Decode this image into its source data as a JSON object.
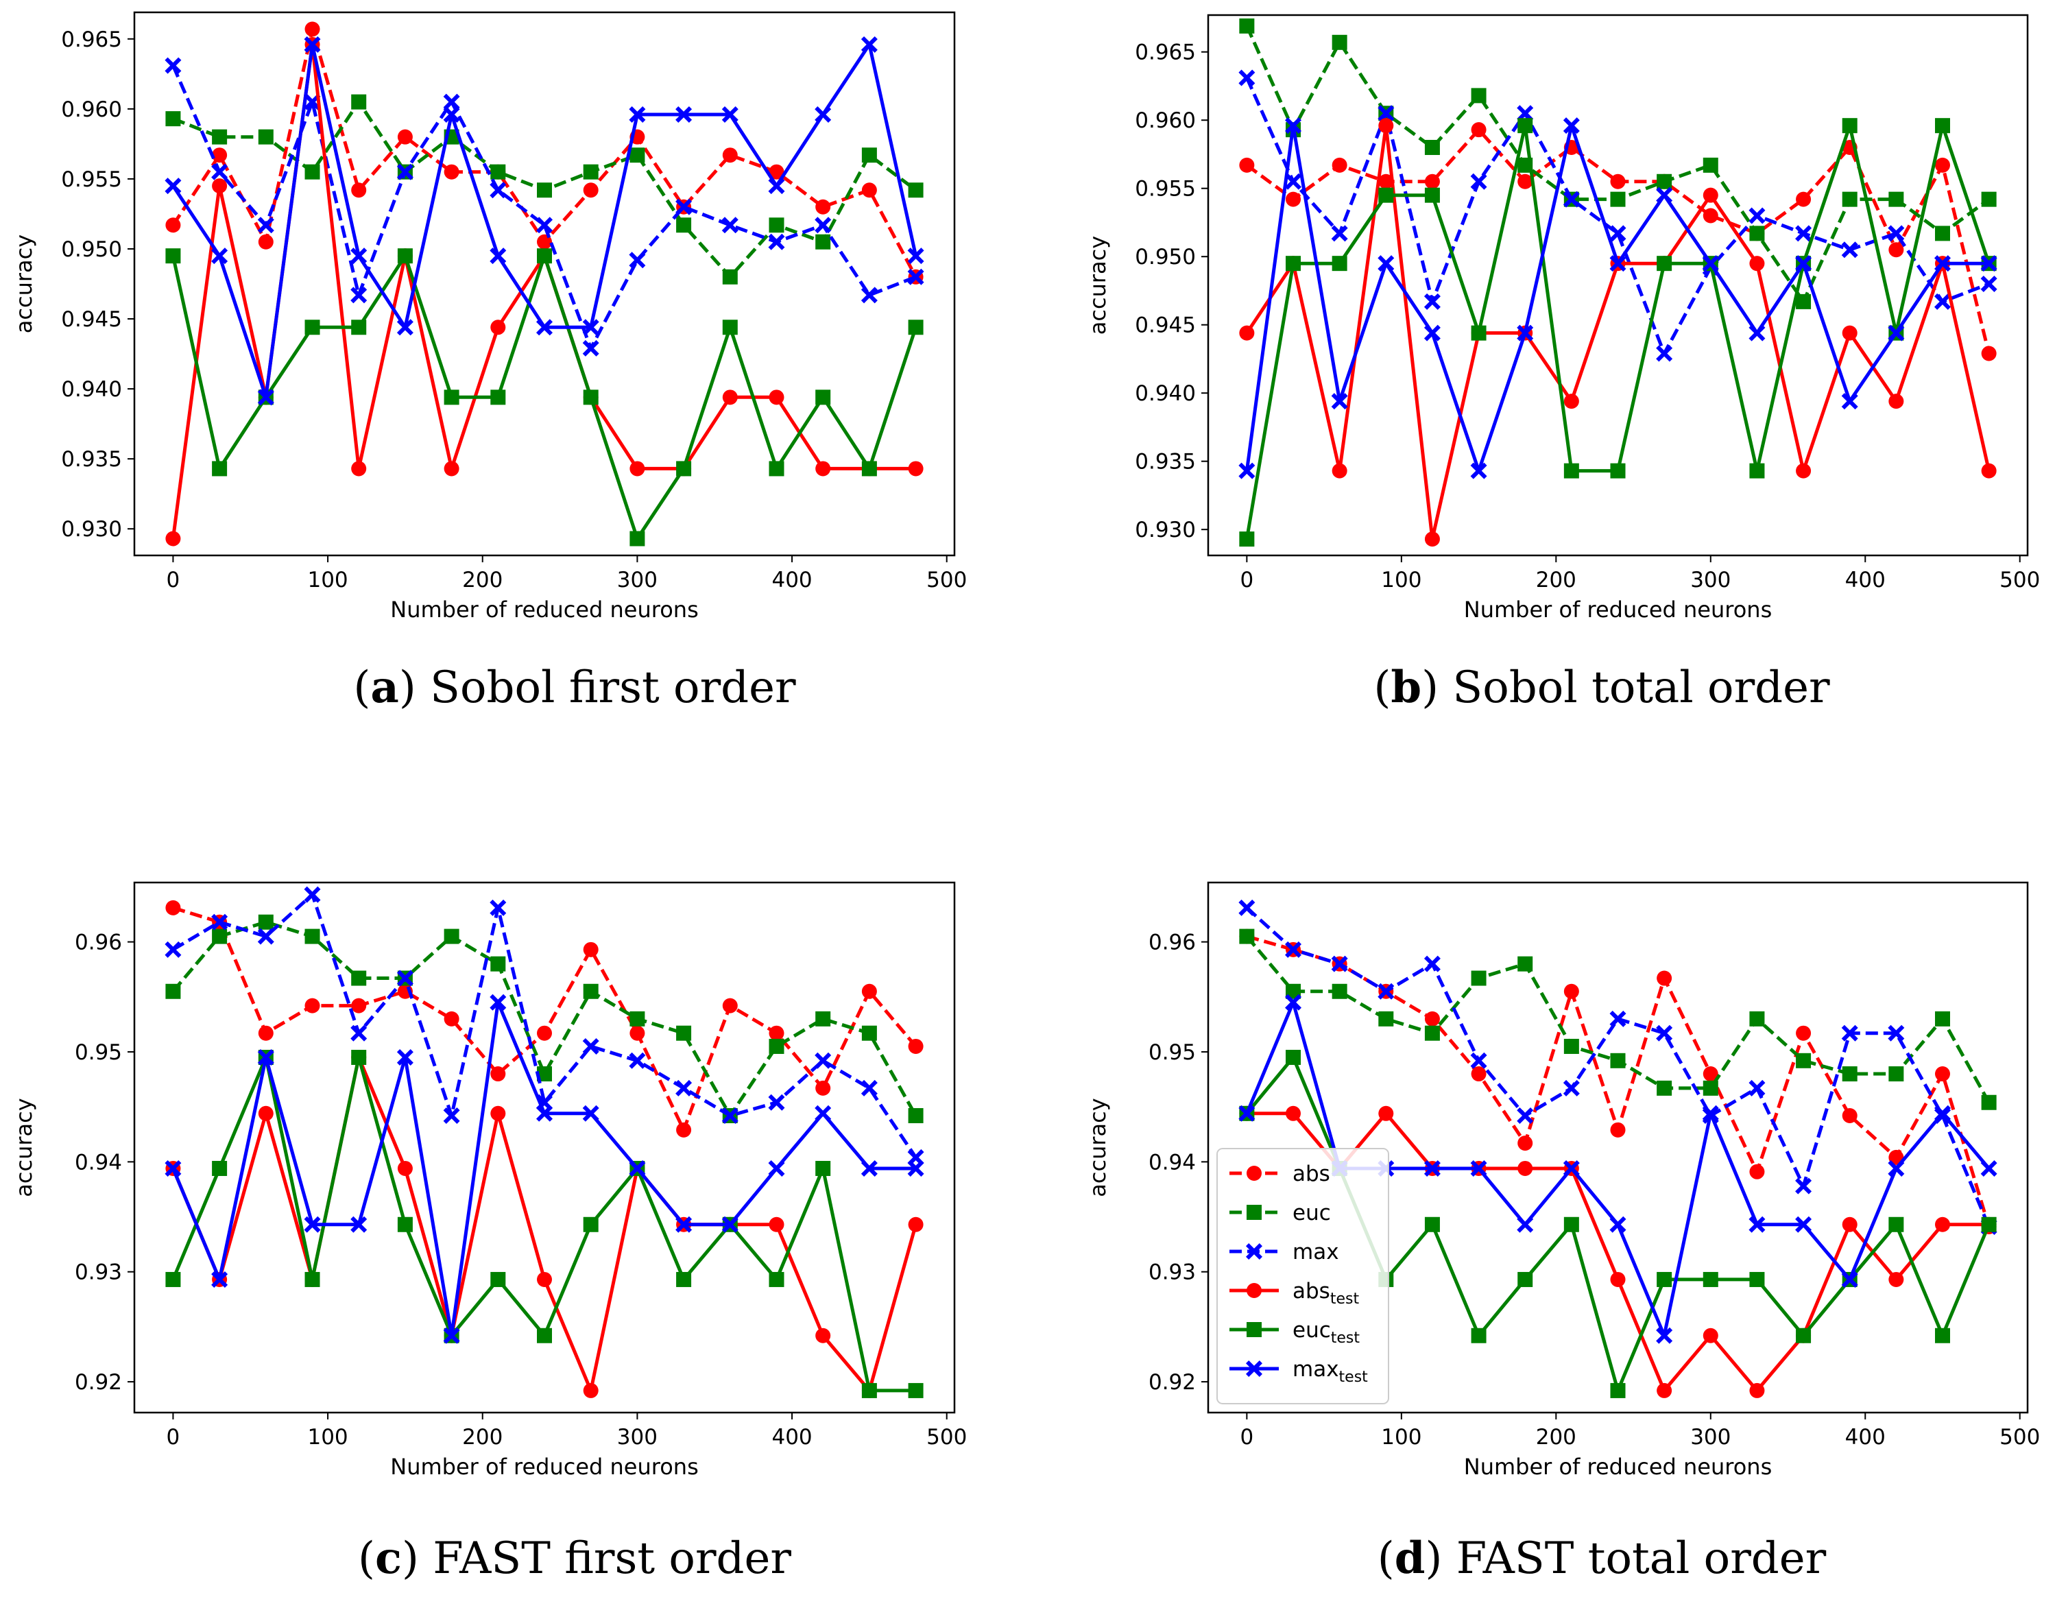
{
  "colors": {
    "abs": "#ff0000",
    "euc": "#008000",
    "max": "#0000ff"
  },
  "legend": {
    "entries": [
      {
        "key": "abs",
        "label": "abs",
        "sub": "",
        "style": "dashed",
        "marker": "circle"
      },
      {
        "key": "euc",
        "label": "euc",
        "sub": "",
        "style": "dashed",
        "marker": "square"
      },
      {
        "key": "max",
        "label": "max",
        "sub": "",
        "style": "dashed",
        "marker": "x"
      },
      {
        "key": "abs",
        "label": "abs",
        "sub": "test",
        "style": "solid",
        "marker": "circle"
      },
      {
        "key": "euc",
        "label": "euc",
        "sub": "test",
        "style": "solid",
        "marker": "square"
      },
      {
        "key": "max",
        "label": "max",
        "sub": "test",
        "style": "solid",
        "marker": "x"
      }
    ]
  },
  "chart_data": [
    {
      "type": "line",
      "panel": "a",
      "caption_letter": "a",
      "caption_text": "Sobol first order",
      "xlabel": "Number of reduced neurons",
      "ylabel": "accuracy",
      "xlim": [
        -25,
        505
      ],
      "ylim": [
        0.9281,
        0.9669
      ],
      "xticks": [
        0,
        100,
        200,
        300,
        400,
        500
      ],
      "yticks": [
        0.93,
        0.935,
        0.94,
        0.945,
        0.95,
        0.955,
        0.96,
        0.965
      ],
      "ytick_labels": [
        "0.930",
        "0.935",
        "0.940",
        "0.945",
        "0.950",
        "0.955",
        "0.960",
        "0.965"
      ],
      "x": [
        0,
        30,
        60,
        90,
        120,
        150,
        180,
        210,
        240,
        270,
        300,
        330,
        360,
        390,
        420,
        450,
        480
      ],
      "series": [
        {
          "name": "abs",
          "key": "abs",
          "style": "dashed",
          "marker": "circle",
          "values": [
            0.9517,
            0.9567,
            0.9505,
            0.9657,
            0.9542,
            0.958,
            0.9555,
            0.9555,
            0.9505,
            0.9542,
            0.958,
            0.953,
            0.9567,
            0.9555,
            0.953,
            0.9542,
            0.948
          ]
        },
        {
          "name": "euc",
          "key": "euc",
          "style": "dashed",
          "marker": "square",
          "values": [
            0.9593,
            0.958,
            0.958,
            0.9555,
            0.9605,
            0.9555,
            0.958,
            0.9555,
            0.9542,
            0.9555,
            0.9567,
            0.9517,
            0.948,
            0.9517,
            0.9505,
            0.9567,
            0.9542
          ]
        },
        {
          "name": "max",
          "key": "max",
          "style": "dashed",
          "marker": "x",
          "values": [
            0.9631,
            0.9555,
            0.9517,
            0.9605,
            0.9467,
            0.9555,
            0.9605,
            0.9542,
            0.9517,
            0.9429,
            0.9492,
            0.953,
            0.9517,
            0.9505,
            0.9517,
            0.9467,
            0.948
          ]
        },
        {
          "name": "abs_test",
          "key": "abs",
          "style": "solid",
          "marker": "circle",
          "values": [
            0.9293,
            0.9545,
            0.9394,
            0.9646,
            0.9343,
            0.9495,
            0.9343,
            0.9444,
            0.9495,
            0.9394,
            0.9343,
            0.9343,
            0.9394,
            0.9394,
            0.9343,
            0.9343,
            0.9343
          ]
        },
        {
          "name": "euc_test",
          "key": "euc",
          "style": "solid",
          "marker": "square",
          "values": [
            0.9495,
            0.9343,
            0.9394,
            0.9444,
            0.9444,
            0.9495,
            0.9394,
            0.9394,
            0.9495,
            0.9394,
            0.9293,
            0.9343,
            0.9444,
            0.9343,
            0.9394,
            0.9343,
            0.9444
          ]
        },
        {
          "name": "max_test",
          "key": "max",
          "style": "solid",
          "marker": "x",
          "values": [
            0.9545,
            0.9495,
            0.9394,
            0.9646,
            0.9495,
            0.9444,
            0.9596,
            0.9495,
            0.9444,
            0.9444,
            0.9596,
            0.9596,
            0.9596,
            0.9545,
            0.9596,
            0.9646,
            0.9495
          ]
        }
      ]
    },
    {
      "type": "line",
      "panel": "b",
      "caption_letter": "b",
      "caption_text": "Sobol total order",
      "xlabel": "Number of reduced neurons",
      "ylabel": "accuracy",
      "xlim": [
        -25,
        505
      ],
      "ylim": [
        0.9281,
        0.9677
      ],
      "xticks": [
        0,
        100,
        200,
        300,
        400,
        500
      ],
      "yticks": [
        0.93,
        0.935,
        0.94,
        0.945,
        0.95,
        0.955,
        0.96,
        0.965
      ],
      "ytick_labels": [
        "0.930",
        "0.935",
        "0.940",
        "0.945",
        "0.950",
        "0.955",
        "0.960",
        "0.965"
      ],
      "x": [
        0,
        30,
        60,
        90,
        120,
        150,
        180,
        210,
        240,
        270,
        300,
        330,
        360,
        390,
        420,
        450,
        480
      ],
      "series": [
        {
          "name": "abs",
          "key": "abs",
          "style": "dashed",
          "marker": "circle",
          "values": [
            0.9567,
            0.9542,
            0.9567,
            0.9555,
            0.9555,
            0.9593,
            0.9555,
            0.958,
            0.9555,
            0.9555,
            0.953,
            0.9517,
            0.9542,
            0.958,
            0.9505,
            0.9567,
            0.9429
          ]
        },
        {
          "name": "euc",
          "key": "euc",
          "style": "dashed",
          "marker": "square",
          "values": [
            0.9669,
            0.9593,
            0.9657,
            0.9605,
            0.958,
            0.9618,
            0.9567,
            0.9542,
            0.9542,
            0.9555,
            0.9567,
            0.9517,
            0.9467,
            0.9542,
            0.9542,
            0.9517,
            0.9542
          ]
        },
        {
          "name": "max",
          "key": "max",
          "style": "dashed",
          "marker": "x",
          "values": [
            0.9631,
            0.9555,
            0.9517,
            0.9605,
            0.9467,
            0.9555,
            0.9605,
            0.9542,
            0.9517,
            0.9429,
            0.9492,
            0.953,
            0.9517,
            0.9505,
            0.9517,
            0.9467,
            0.948
          ]
        },
        {
          "name": "abs_test",
          "key": "abs",
          "style": "solid",
          "marker": "circle",
          "values": [
            0.9444,
            0.9495,
            0.9343,
            0.9596,
            0.9293,
            0.9444,
            0.9444,
            0.9394,
            0.9495,
            0.9495,
            0.9545,
            0.9495,
            0.9343,
            0.9444,
            0.9394,
            0.9495,
            0.9343
          ]
        },
        {
          "name": "euc_test",
          "key": "euc",
          "style": "solid",
          "marker": "square",
          "values": [
            0.9293,
            0.9495,
            0.9495,
            0.9545,
            0.9545,
            0.9444,
            0.9596,
            0.9343,
            0.9343,
            0.9495,
            0.9495,
            0.9343,
            0.9495,
            0.9596,
            0.9444,
            0.9596,
            0.9495
          ]
        },
        {
          "name": "max_test",
          "key": "max",
          "style": "solid",
          "marker": "x",
          "values": [
            0.9343,
            0.9596,
            0.9394,
            0.9495,
            0.9444,
            0.9343,
            0.9444,
            0.9596,
            0.9495,
            0.9545,
            0.9495,
            0.9444,
            0.9495,
            0.9394,
            0.9444,
            0.9495,
            0.9495
          ]
        }
      ]
    },
    {
      "type": "line",
      "panel": "c",
      "caption_letter": "c",
      "caption_text": "FAST first order",
      "xlabel": "Number of reduced neurons",
      "ylabel": "accuracy",
      "xlim": [
        -25,
        505
      ],
      "ylim": [
        0.9172,
        0.9654
      ],
      "xticks": [
        0,
        100,
        200,
        300,
        400,
        500
      ],
      "yticks": [
        0.92,
        0.93,
        0.94,
        0.95,
        0.96
      ],
      "ytick_labels": [
        "0.92",
        "0.93",
        "0.94",
        "0.95",
        "0.96"
      ],
      "x": [
        0,
        30,
        60,
        90,
        120,
        150,
        180,
        210,
        240,
        270,
        300,
        330,
        360,
        390,
        420,
        450,
        480
      ],
      "series": [
        {
          "name": "abs",
          "key": "abs",
          "style": "dashed",
          "marker": "circle",
          "values": [
            0.9631,
            0.9618,
            0.9517,
            0.9542,
            0.9542,
            0.9555,
            0.953,
            0.948,
            0.9517,
            0.9593,
            0.9517,
            0.9429,
            0.9542,
            0.9517,
            0.9467,
            0.9555,
            0.9505
          ]
        },
        {
          "name": "euc",
          "key": "euc",
          "style": "dashed",
          "marker": "square",
          "values": [
            0.9555,
            0.9605,
            0.9618,
            0.9605,
            0.9567,
            0.9567,
            0.9605,
            0.958,
            0.948,
            0.9555,
            0.953,
            0.9517,
            0.9442,
            0.9505,
            0.953,
            0.9517,
            0.9442
          ]
        },
        {
          "name": "max",
          "key": "max",
          "style": "dashed",
          "marker": "x",
          "values": [
            0.9593,
            0.9618,
            0.9605,
            0.9643,
            0.9517,
            0.9567,
            0.9442,
            0.9631,
            0.9454,
            0.9505,
            0.9492,
            0.9467,
            0.9442,
            0.9454,
            0.9492,
            0.9467,
            0.9404
          ]
        },
        {
          "name": "abs_test",
          "key": "abs",
          "style": "solid",
          "marker": "circle",
          "values": [
            0.9394,
            0.9293,
            0.9444,
            0.9293,
            0.9495,
            0.9394,
            0.9242,
            0.9444,
            0.9293,
            0.9192,
            0.9394,
            0.9343,
            0.9343,
            0.9343,
            0.9242,
            0.9192,
            0.9343
          ]
        },
        {
          "name": "euc_test",
          "key": "euc",
          "style": "solid",
          "marker": "square",
          "values": [
            0.9293,
            0.9394,
            0.9495,
            0.9293,
            0.9495,
            0.9343,
            0.9242,
            0.9293,
            0.9242,
            0.9343,
            0.9394,
            0.9293,
            0.9343,
            0.9293,
            0.9394,
            0.9192,
            0.9192
          ]
        },
        {
          "name": "max_test",
          "key": "max",
          "style": "solid",
          "marker": "x",
          "values": [
            0.9394,
            0.9293,
            0.9495,
            0.9343,
            0.9343,
            0.9495,
            0.9242,
            0.9545,
            0.9444,
            0.9444,
            0.9394,
            0.9343,
            0.9343,
            0.9394,
            0.9444,
            0.9394,
            0.9394
          ]
        }
      ]
    },
    {
      "type": "line",
      "panel": "d",
      "caption_letter": "d",
      "caption_text": "FAST total order",
      "xlabel": "Number of reduced neurons",
      "ylabel": "accuracy",
      "xlim": [
        -25,
        505
      ],
      "ylim": [
        0.9172,
        0.9654
      ],
      "xticks": [
        0,
        100,
        200,
        300,
        400,
        500
      ],
      "yticks": [
        0.92,
        0.93,
        0.94,
        0.95,
        0.96
      ],
      "ytick_labels": [
        "0.92",
        "0.93",
        "0.94",
        "0.95",
        "0.96"
      ],
      "legend_loc": "lower-left",
      "x": [
        0,
        30,
        60,
        90,
        120,
        150,
        180,
        210,
        240,
        270,
        300,
        330,
        360,
        390,
        420,
        450,
        480
      ],
      "series": [
        {
          "name": "abs",
          "key": "abs",
          "style": "dashed",
          "marker": "circle",
          "values": [
            0.9605,
            0.9593,
            0.958,
            0.9555,
            0.953,
            0.948,
            0.9417,
            0.9555,
            0.9429,
            0.9567,
            0.948,
            0.9391,
            0.9517,
            0.9442,
            0.9404,
            0.948,
            0.9341
          ]
        },
        {
          "name": "euc",
          "key": "euc",
          "style": "dashed",
          "marker": "square",
          "values": [
            0.9605,
            0.9555,
            0.9555,
            0.953,
            0.9517,
            0.9567,
            0.958,
            0.9505,
            0.9492,
            0.9467,
            0.9467,
            0.953,
            0.9492,
            0.948,
            0.948,
            0.953,
            0.9454
          ]
        },
        {
          "name": "max",
          "key": "max",
          "style": "dashed",
          "marker": "x",
          "values": [
            0.9631,
            0.9593,
            0.958,
            0.9555,
            0.958,
            0.9492,
            0.9442,
            0.9467,
            0.953,
            0.9517,
            0.9442,
            0.9467,
            0.9378,
            0.9517,
            0.9517,
            0.9442,
            0.9341
          ]
        },
        {
          "name": "abs_test",
          "key": "abs",
          "style": "solid",
          "marker": "circle",
          "values": [
            0.9444,
            0.9444,
            0.9394,
            0.9444,
            0.9394,
            0.9394,
            0.9394,
            0.9394,
            0.9293,
            0.9192,
            0.9242,
            0.9192,
            0.9242,
            0.9343,
            0.9293,
            0.9343,
            0.9343
          ]
        },
        {
          "name": "euc_test",
          "key": "euc",
          "style": "solid",
          "marker": "square",
          "values": [
            0.9444,
            0.9495,
            0.9394,
            0.9293,
            0.9343,
            0.9242,
            0.9293,
            0.9343,
            0.9192,
            0.9293,
            0.9293,
            0.9293,
            0.9242,
            0.9293,
            0.9343,
            0.9242,
            0.9343
          ]
        },
        {
          "name": "max_test",
          "key": "max",
          "style": "solid",
          "marker": "x",
          "values": [
            0.9444,
            0.9545,
            0.9394,
            0.9394,
            0.9394,
            0.9394,
            0.9343,
            0.9394,
            0.9343,
            0.9242,
            0.9444,
            0.9343,
            0.9343,
            0.9293,
            0.9394,
            0.9444,
            0.9394
          ]
        }
      ]
    }
  ]
}
